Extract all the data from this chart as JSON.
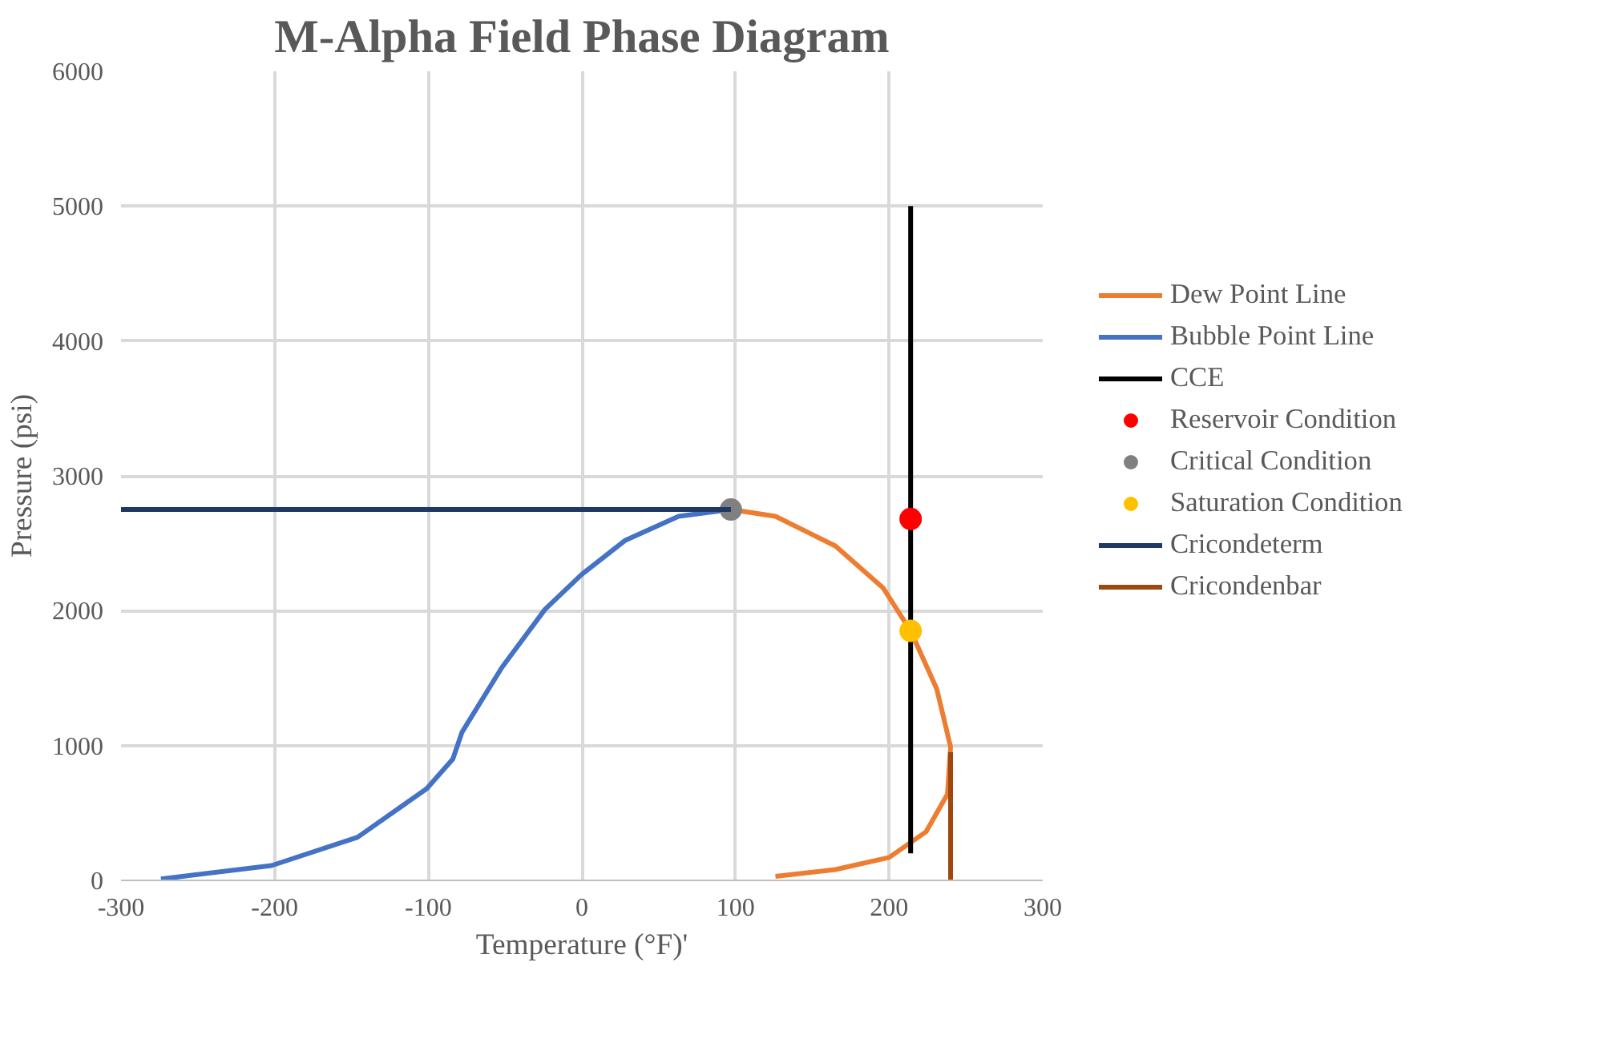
{
  "chart_data": {
    "type": "line",
    "title": "M-Alpha Field Phase Diagram",
    "xlabel": "Temperature (°F)'",
    "ylabel": "Pressure (psi)",
    "xlim": [
      -300,
      300
    ],
    "xticks": [
      -300,
      -200,
      -100,
      0,
      100,
      200,
      300
    ],
    "ylim": [
      0,
      6000
    ],
    "yticks": [
      0,
      1000,
      2000,
      3000,
      4000,
      5000,
      6000
    ],
    "grid": true,
    "legend": "right",
    "series": [
      {
        "name": "Dew Point Line",
        "color": "#ed7d31",
        "x": [
          97,
          126,
          165,
          196,
          214,
          231,
          240,
          238,
          224,
          200,
          165,
          126
        ],
        "values": [
          2750,
          2700,
          2480,
          2170,
          1850,
          1420,
          990,
          640,
          360,
          170,
          80,
          30
        ]
      },
      {
        "name": "Bubble Point Line",
        "color": "#4472c4",
        "x": [
          -274,
          -202,
          -146,
          -101,
          -84,
          -78,
          -52,
          -24,
          0,
          28,
          63,
          97
        ],
        "values": [
          10,
          110,
          320,
          680,
          900,
          1100,
          1580,
          2010,
          2270,
          2520,
          2700,
          2750
        ]
      },
      {
        "name": "CCE",
        "color": "#000000",
        "x": [
          214,
          214
        ],
        "values": [
          200,
          5000
        ]
      },
      {
        "name": "Reservoir Condition",
        "color": "#ff0000",
        "type": "scatter",
        "marker": "circle",
        "x": [
          214
        ],
        "values": [
          2680
        ]
      },
      {
        "name": "Critical Condition",
        "color": "#808080",
        "type": "scatter",
        "marker": "circle",
        "x": [
          97
        ],
        "values": [
          2750
        ]
      },
      {
        "name": "Saturation Condition",
        "color": "#ffc000",
        "type": "scatter",
        "marker": "circle",
        "x": [
          214
        ],
        "values": [
          1850
        ]
      },
      {
        "name": "Cricondeterm",
        "color": "#1f3864",
        "x": [
          -300,
          97
        ],
        "values": [
          2750,
          2750
        ]
      },
      {
        "name": "Cricondenbar",
        "color": "#9e480e",
        "x": [
          240,
          240
        ],
        "values": [
          950,
          0
        ]
      }
    ]
  }
}
